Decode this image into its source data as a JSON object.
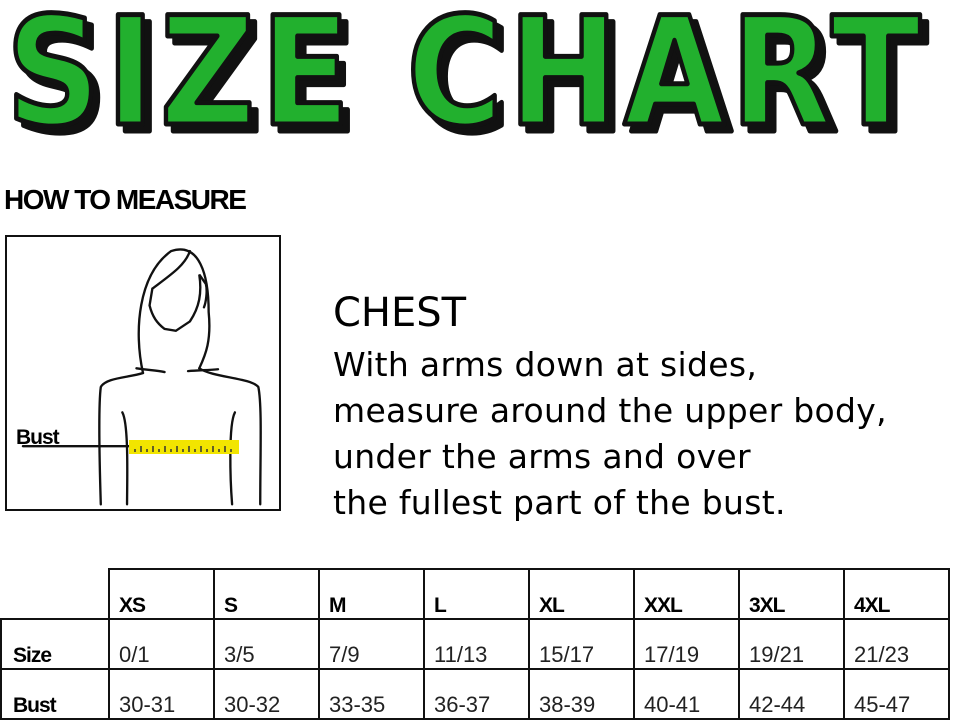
{
  "title": "SIZE CHART",
  "colors": {
    "title_fill": "#22b02e",
    "title_shadow": "#111111",
    "tape": "#f2e500"
  },
  "how_to_measure": "HOW TO MEASURE",
  "figure": {
    "bust_label": "Bust"
  },
  "chest": {
    "heading": "CHEST",
    "lines": [
      "With arms down at sides,",
      "measure around the upper body,",
      "under the arms and over",
      "the fullest part of the bust."
    ]
  },
  "table": {
    "headers": [
      "XS",
      "S",
      "M",
      "L",
      "XL",
      "XXL",
      "3XL",
      "4XL"
    ],
    "rows": [
      {
        "label": "Size",
        "values": [
          "0/1",
          "3/5",
          "7/9",
          "11/13",
          "15/17",
          "17/19",
          "19/21",
          "21/23"
        ]
      },
      {
        "label": "Bust",
        "values": [
          "30-31",
          "30-32",
          "33-35",
          "36-37",
          "38-39",
          "40-41",
          "42-44",
          "45-47"
        ]
      }
    ]
  }
}
